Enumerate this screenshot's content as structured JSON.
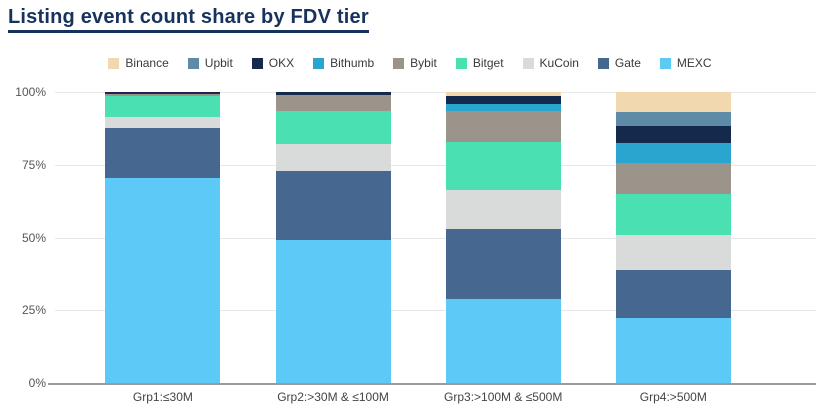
{
  "title": "Listing event count share by FDV tier",
  "chart_data": {
    "type": "bar",
    "stacked": true,
    "unit": "percent",
    "title": "Listing event count share by FDV tier",
    "categories": [
      "Grp1:≤30M",
      "Grp2:>30M & ≤100M",
      "Grp3:>100M & ≤500M",
      "Grp4:>500M"
    ],
    "y_ticks": [
      {
        "value": 100,
        "label": "100%"
      },
      {
        "value": 75,
        "label": "75%"
      },
      {
        "value": 50,
        "label": "50%"
      },
      {
        "value": 25,
        "label": "25%"
      },
      {
        "value": 0,
        "label": "0%"
      }
    ],
    "ylim": [
      0,
      100
    ],
    "grid": "horizontal",
    "legend_position": "top",
    "series": [
      {
        "name": "Binance",
        "color": "#f2d8ae",
        "values": [
          0,
          0,
          1.5,
          7
        ]
      },
      {
        "name": "Upbit",
        "color": "#5d8ba8",
        "values": [
          0,
          0,
          0,
          4.5
        ]
      },
      {
        "name": "OKX",
        "color": "#14294b",
        "values": [
          0.5,
          1,
          2.5,
          6
        ]
      },
      {
        "name": "Bithumb",
        "color": "#2aa5cf",
        "values": [
          0,
          0,
          2.5,
          7
        ]
      },
      {
        "name": "Bybit",
        "color": "#9b948a",
        "values": [
          1,
          5.5,
          10.5,
          10.5
        ]
      },
      {
        "name": "Bitget",
        "color": "#4ae0b2",
        "values": [
          7,
          11.5,
          16.5,
          14
        ]
      },
      {
        "name": "KuCoin",
        "color": "#d9dbdb",
        "values": [
          4,
          9,
          13.5,
          12
        ]
      },
      {
        "name": "Gate",
        "color": "#46678f",
        "values": [
          17,
          24,
          24,
          16.5
        ]
      },
      {
        "name": "MEXC",
        "color": "#5dc9f6",
        "values": [
          70.5,
          49,
          29,
          22.5
        ]
      }
    ]
  },
  "colors": {
    "title": "#17335d",
    "gridline": "#e7e7e7",
    "axis_line": "#9b9b9b",
    "tick_text": "#555555",
    "legend_text": "#3a3a3a"
  }
}
